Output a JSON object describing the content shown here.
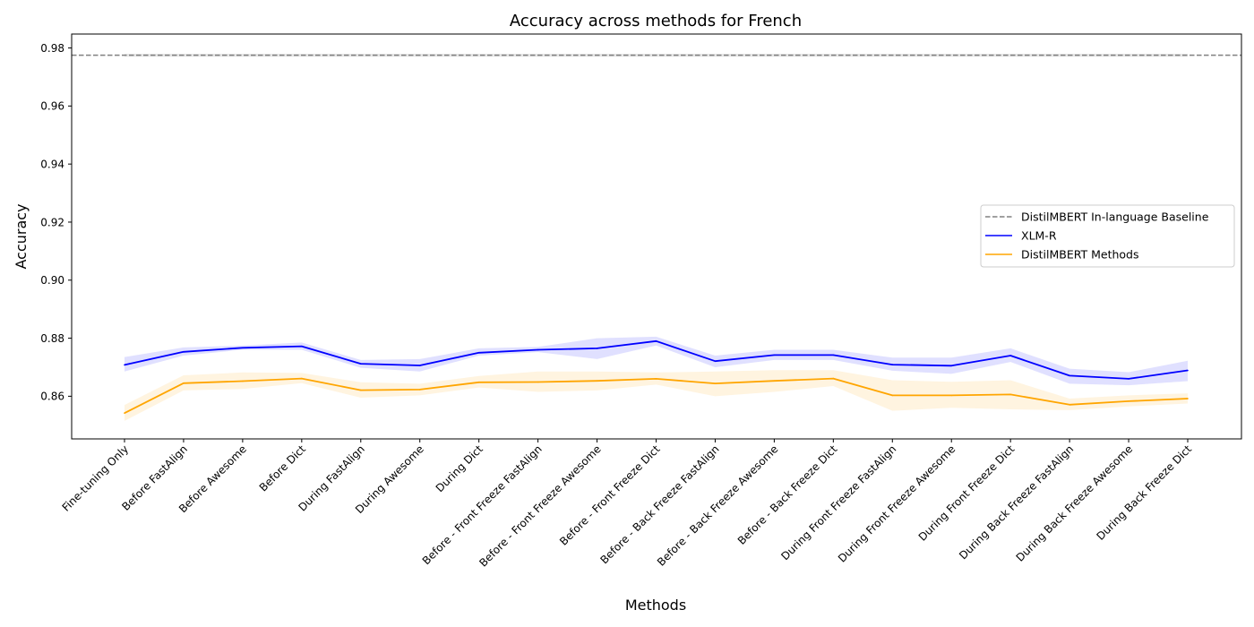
{
  "chart_data": {
    "type": "line",
    "title": "Accuracy across methods for French",
    "xlabel": "Methods",
    "ylabel": "Accuracy",
    "ylim": [
      0.8453,
      0.9848
    ],
    "yticks": [
      "0.86",
      "0.88",
      "0.90",
      "0.92",
      "0.94",
      "0.96",
      "0.98"
    ],
    "ytick_values": [
      0.86,
      0.88,
      0.9,
      0.92,
      0.94,
      0.96,
      0.98
    ],
    "grid": false,
    "legend_position": "center-right",
    "categories": [
      "Fine-tuning Only",
      "Before FastAlign",
      "Before Awesome",
      "Before Dict",
      "During FastAlign",
      "During Awesome",
      "During Dict",
      "Before - Front Freeze FastAlign",
      "Before - Front Freeze Awesome",
      "Before - Front Freeze Dict",
      "Before - Back Freeze FastAlign",
      "Before - Back Freeze Awesome",
      "Before - Back Freeze Dict",
      "During Front Freeze FastAlign",
      "During Front Freeze Awesome",
      "During Front Freeze Dict",
      "During Back Freeze FastAlign",
      "During Back Freeze Awesome",
      "During Back Freeze Dict"
    ],
    "baseline": {
      "name": "DistilMBERT In-language Baseline",
      "value": 0.9775,
      "band": [
        0.977,
        0.978
      ],
      "color": "#808080"
    },
    "series": [
      {
        "name": "XLM-R",
        "color": "#0000ff",
        "values": [
          0.8708,
          0.8753,
          0.8767,
          0.8772,
          0.8712,
          0.8706,
          0.875,
          0.876,
          0.8765,
          0.879,
          0.8721,
          0.8742,
          0.8742,
          0.8709,
          0.8705,
          0.874,
          0.8671,
          0.866,
          0.8689
        ],
        "lower": [
          0.8685,
          0.874,
          0.876,
          0.876,
          0.8698,
          0.8685,
          0.874,
          0.8752,
          0.8728,
          0.8775,
          0.87,
          0.8725,
          0.8725,
          0.8688,
          0.8677,
          0.8718,
          0.8643,
          0.8638,
          0.8652
        ],
        "upper": [
          0.8735,
          0.8768,
          0.8775,
          0.8785,
          0.8725,
          0.8728,
          0.8765,
          0.877,
          0.88,
          0.8805,
          0.874,
          0.876,
          0.876,
          0.8733,
          0.8733,
          0.8765,
          0.8695,
          0.8683,
          0.8722
        ]
      },
      {
        "name": "DistilMBERT Methods",
        "color": "#ffa500",
        "values": [
          0.8542,
          0.8645,
          0.8652,
          0.8661,
          0.8621,
          0.8623,
          0.8648,
          0.8649,
          0.8653,
          0.866,
          0.8644,
          0.8653,
          0.8661,
          0.8603,
          0.8603,
          0.8606,
          0.8571,
          0.8583,
          0.8592
        ],
        "lower": [
          0.8515,
          0.862,
          0.8625,
          0.8645,
          0.8595,
          0.8603,
          0.863,
          0.8615,
          0.862,
          0.864,
          0.86,
          0.8615,
          0.8635,
          0.855,
          0.856,
          0.8555,
          0.8552,
          0.8565,
          0.8575
        ],
        "upper": [
          0.857,
          0.8672,
          0.8682,
          0.868,
          0.8648,
          0.8643,
          0.867,
          0.8685,
          0.8685,
          0.8682,
          0.8685,
          0.869,
          0.869,
          0.8655,
          0.865,
          0.8655,
          0.8592,
          0.8603,
          0.861
        ]
      }
    ]
  }
}
